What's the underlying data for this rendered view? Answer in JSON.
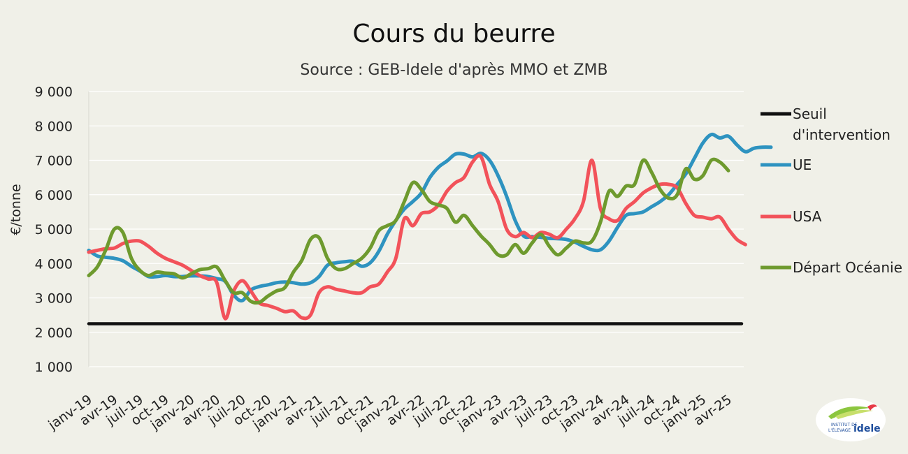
{
  "chart_data": {
    "type": "line",
    "title": "Cours du beurre",
    "subtitle": "Source : GEB-Idele d'après MMO et ZMB",
    "ylabel": "€/tonne",
    "ylim": [
      1000,
      9000
    ],
    "yticks": [
      "1 000",
      "2 000",
      "3 000",
      "4 000",
      "5 000",
      "6 000",
      "7 000",
      "8 000",
      "9 000"
    ],
    "ytick_values": [
      1000,
      2000,
      3000,
      4000,
      5000,
      6000,
      7000,
      8000,
      9000
    ],
    "xticks": [
      "janv-19",
      "avr-19",
      "juil-19",
      "oct-19",
      "janv-20",
      "avr-20",
      "juil-20",
      "oct-20",
      "janv-21",
      "avr-21",
      "juil-21",
      "oct-21",
      "janv-22",
      "avr-22",
      "juil-22",
      "oct-22",
      "janv-23",
      "avr-23",
      "juil-23",
      "oct-23",
      "janv-24",
      "avr-24",
      "juil-24",
      "oct-24",
      "janv-25",
      "avr-25"
    ],
    "grid": true,
    "legend_position": "right",
    "series": [
      {
        "name": "Seuil d'intervention",
        "color": "#111111",
        "values": [
          [
            0,
            2250
          ],
          [
            76,
            2250
          ]
        ]
      },
      {
        "name": "UE",
        "color": "#2e93c0",
        "values": [
          [
            0,
            4380
          ],
          [
            1,
            4220
          ],
          [
            2,
            4180
          ],
          [
            3,
            4150
          ],
          [
            4,
            4080
          ],
          [
            5,
            3920
          ],
          [
            6,
            3780
          ],
          [
            7,
            3620
          ],
          [
            8,
            3620
          ],
          [
            9,
            3650
          ],
          [
            10,
            3620
          ],
          [
            11,
            3620
          ],
          [
            12,
            3640
          ],
          [
            13,
            3640
          ],
          [
            14,
            3620
          ],
          [
            15,
            3560
          ],
          [
            16,
            3480
          ],
          [
            17,
            3080
          ],
          [
            18,
            2920
          ],
          [
            19,
            3230
          ],
          [
            20,
            3330
          ],
          [
            21,
            3380
          ],
          [
            22,
            3440
          ],
          [
            23,
            3460
          ],
          [
            24,
            3440
          ],
          [
            25,
            3400
          ],
          [
            26,
            3440
          ],
          [
            27,
            3620
          ],
          [
            28,
            3950
          ],
          [
            29,
            4020
          ],
          [
            30,
            4050
          ],
          [
            31,
            4060
          ],
          [
            32,
            3920
          ],
          [
            33,
            4020
          ],
          [
            34,
            4350
          ],
          [
            35,
            4850
          ],
          [
            36,
            5250
          ],
          [
            37,
            5580
          ],
          [
            38,
            5800
          ],
          [
            39,
            6050
          ],
          [
            40,
            6500
          ],
          [
            41,
            6800
          ],
          [
            42,
            6980
          ],
          [
            43,
            7180
          ],
          [
            44,
            7180
          ],
          [
            45,
            7100
          ],
          [
            46,
            7200
          ],
          [
            47,
            7000
          ],
          [
            48,
            6550
          ],
          [
            49,
            5950
          ],
          [
            50,
            5250
          ],
          [
            51,
            4800
          ],
          [
            52,
            4780
          ],
          [
            53,
            4760
          ],
          [
            54,
            4730
          ],
          [
            55,
            4720
          ],
          [
            56,
            4700
          ],
          [
            57,
            4620
          ],
          [
            58,
            4500
          ],
          [
            59,
            4400
          ],
          [
            60,
            4400
          ],
          [
            61,
            4650
          ],
          [
            62,
            5050
          ],
          [
            63,
            5400
          ],
          [
            64,
            5450
          ],
          [
            65,
            5500
          ],
          [
            66,
            5650
          ],
          [
            67,
            5800
          ],
          [
            68,
            6000
          ],
          [
            69,
            6300
          ],
          [
            70,
            6600
          ],
          [
            71,
            7050
          ],
          [
            72,
            7500
          ],
          [
            73,
            7750
          ],
          [
            74,
            7650
          ],
          [
            75,
            7700
          ],
          [
            76,
            7450
          ],
          [
            77,
            7250
          ],
          [
            78,
            7350
          ],
          [
            79,
            7380
          ],
          [
            80,
            7380
          ]
        ]
      },
      {
        "name": "USA",
        "color": "#f2525a",
        "values": [
          [
            0,
            4330
          ],
          [
            1,
            4380
          ],
          [
            2,
            4430
          ],
          [
            3,
            4450
          ],
          [
            4,
            4580
          ],
          [
            5,
            4650
          ],
          [
            6,
            4650
          ],
          [
            7,
            4500
          ],
          [
            8,
            4300
          ],
          [
            9,
            4150
          ],
          [
            10,
            4050
          ],
          [
            11,
            3950
          ],
          [
            12,
            3800
          ],
          [
            13,
            3650
          ],
          [
            14,
            3550
          ],
          [
            15,
            3450
          ],
          [
            16,
            2400
          ],
          [
            17,
            3200
          ],
          [
            18,
            3500
          ],
          [
            19,
            3200
          ],
          [
            20,
            2850
          ],
          [
            21,
            2780
          ],
          [
            22,
            2700
          ],
          [
            23,
            2600
          ],
          [
            24,
            2620
          ],
          [
            25,
            2420
          ],
          [
            26,
            2500
          ],
          [
            27,
            3150
          ],
          [
            28,
            3320
          ],
          [
            29,
            3250
          ],
          [
            30,
            3200
          ],
          [
            31,
            3150
          ],
          [
            32,
            3150
          ],
          [
            33,
            3320
          ],
          [
            34,
            3400
          ],
          [
            35,
            3750
          ],
          [
            36,
            4150
          ],
          [
            37,
            5300
          ],
          [
            38,
            5100
          ],
          [
            39,
            5450
          ],
          [
            40,
            5500
          ],
          [
            41,
            5700
          ],
          [
            42,
            6100
          ],
          [
            43,
            6350
          ],
          [
            44,
            6500
          ],
          [
            45,
            6950
          ],
          [
            46,
            7100
          ],
          [
            47,
            6300
          ],
          [
            48,
            5800
          ],
          [
            49,
            5000
          ],
          [
            50,
            4780
          ],
          [
            51,
            4900
          ],
          [
            52,
            4750
          ],
          [
            53,
            4900
          ],
          [
            54,
            4850
          ],
          [
            55,
            4750
          ],
          [
            56,
            5000
          ],
          [
            57,
            5300
          ],
          [
            58,
            5800
          ],
          [
            59,
            7000
          ],
          [
            60,
            5600
          ],
          [
            61,
            5300
          ],
          [
            62,
            5250
          ],
          [
            63,
            5600
          ],
          [
            64,
            5800
          ],
          [
            65,
            6050
          ],
          [
            66,
            6200
          ],
          [
            67,
            6300
          ],
          [
            68,
            6300
          ],
          [
            69,
            6200
          ],
          [
            70,
            5750
          ],
          [
            71,
            5400
          ],
          [
            72,
            5350
          ],
          [
            73,
            5300
          ],
          [
            74,
            5350
          ],
          [
            75,
            5000
          ],
          [
            76,
            4700
          ],
          [
            77,
            4550
          ]
        ]
      },
      {
        "name": "Départ Océanie",
        "color": "#6e9a2e",
        "values": [
          [
            0,
            3650
          ],
          [
            1,
            3900
          ],
          [
            2,
            4400
          ],
          [
            3,
            5000
          ],
          [
            4,
            4900
          ],
          [
            5,
            4150
          ],
          [
            6,
            3800
          ],
          [
            7,
            3650
          ],
          [
            8,
            3750
          ],
          [
            9,
            3720
          ],
          [
            10,
            3700
          ],
          [
            11,
            3580
          ],
          [
            12,
            3700
          ],
          [
            13,
            3820
          ],
          [
            14,
            3850
          ],
          [
            15,
            3900
          ],
          [
            16,
            3500
          ],
          [
            17,
            3150
          ],
          [
            18,
            3150
          ],
          [
            19,
            2900
          ],
          [
            20,
            2870
          ],
          [
            21,
            3050
          ],
          [
            22,
            3200
          ],
          [
            23,
            3300
          ],
          [
            24,
            3750
          ],
          [
            25,
            4100
          ],
          [
            26,
            4700
          ],
          [
            27,
            4750
          ],
          [
            28,
            4150
          ],
          [
            29,
            3850
          ],
          [
            30,
            3850
          ],
          [
            31,
            4000
          ],
          [
            32,
            4150
          ],
          [
            33,
            4450
          ],
          [
            34,
            4950
          ],
          [
            35,
            5100
          ],
          [
            36,
            5250
          ],
          [
            37,
            5800
          ],
          [
            38,
            6350
          ],
          [
            39,
            6150
          ],
          [
            40,
            5800
          ],
          [
            41,
            5700
          ],
          [
            42,
            5600
          ],
          [
            43,
            5200
          ],
          [
            44,
            5400
          ],
          [
            45,
            5100
          ],
          [
            46,
            4800
          ],
          [
            47,
            4550
          ],
          [
            48,
            4250
          ],
          [
            49,
            4250
          ],
          [
            50,
            4550
          ],
          [
            51,
            4300
          ],
          [
            52,
            4600
          ],
          [
            53,
            4850
          ],
          [
            54,
            4500
          ],
          [
            55,
            4250
          ],
          [
            56,
            4450
          ],
          [
            57,
            4650
          ],
          [
            58,
            4600
          ],
          [
            59,
            4650
          ],
          [
            60,
            5200
          ],
          [
            61,
            6100
          ],
          [
            62,
            5950
          ],
          [
            63,
            6250
          ],
          [
            64,
            6300
          ],
          [
            65,
            7000
          ],
          [
            66,
            6650
          ],
          [
            67,
            6150
          ],
          [
            68,
            5900
          ],
          [
            69,
            6000
          ],
          [
            70,
            6750
          ],
          [
            71,
            6450
          ],
          [
            72,
            6550
          ],
          [
            73,
            7000
          ],
          [
            74,
            6950
          ],
          [
            75,
            6700
          ]
        ]
      }
    ]
  }
}
